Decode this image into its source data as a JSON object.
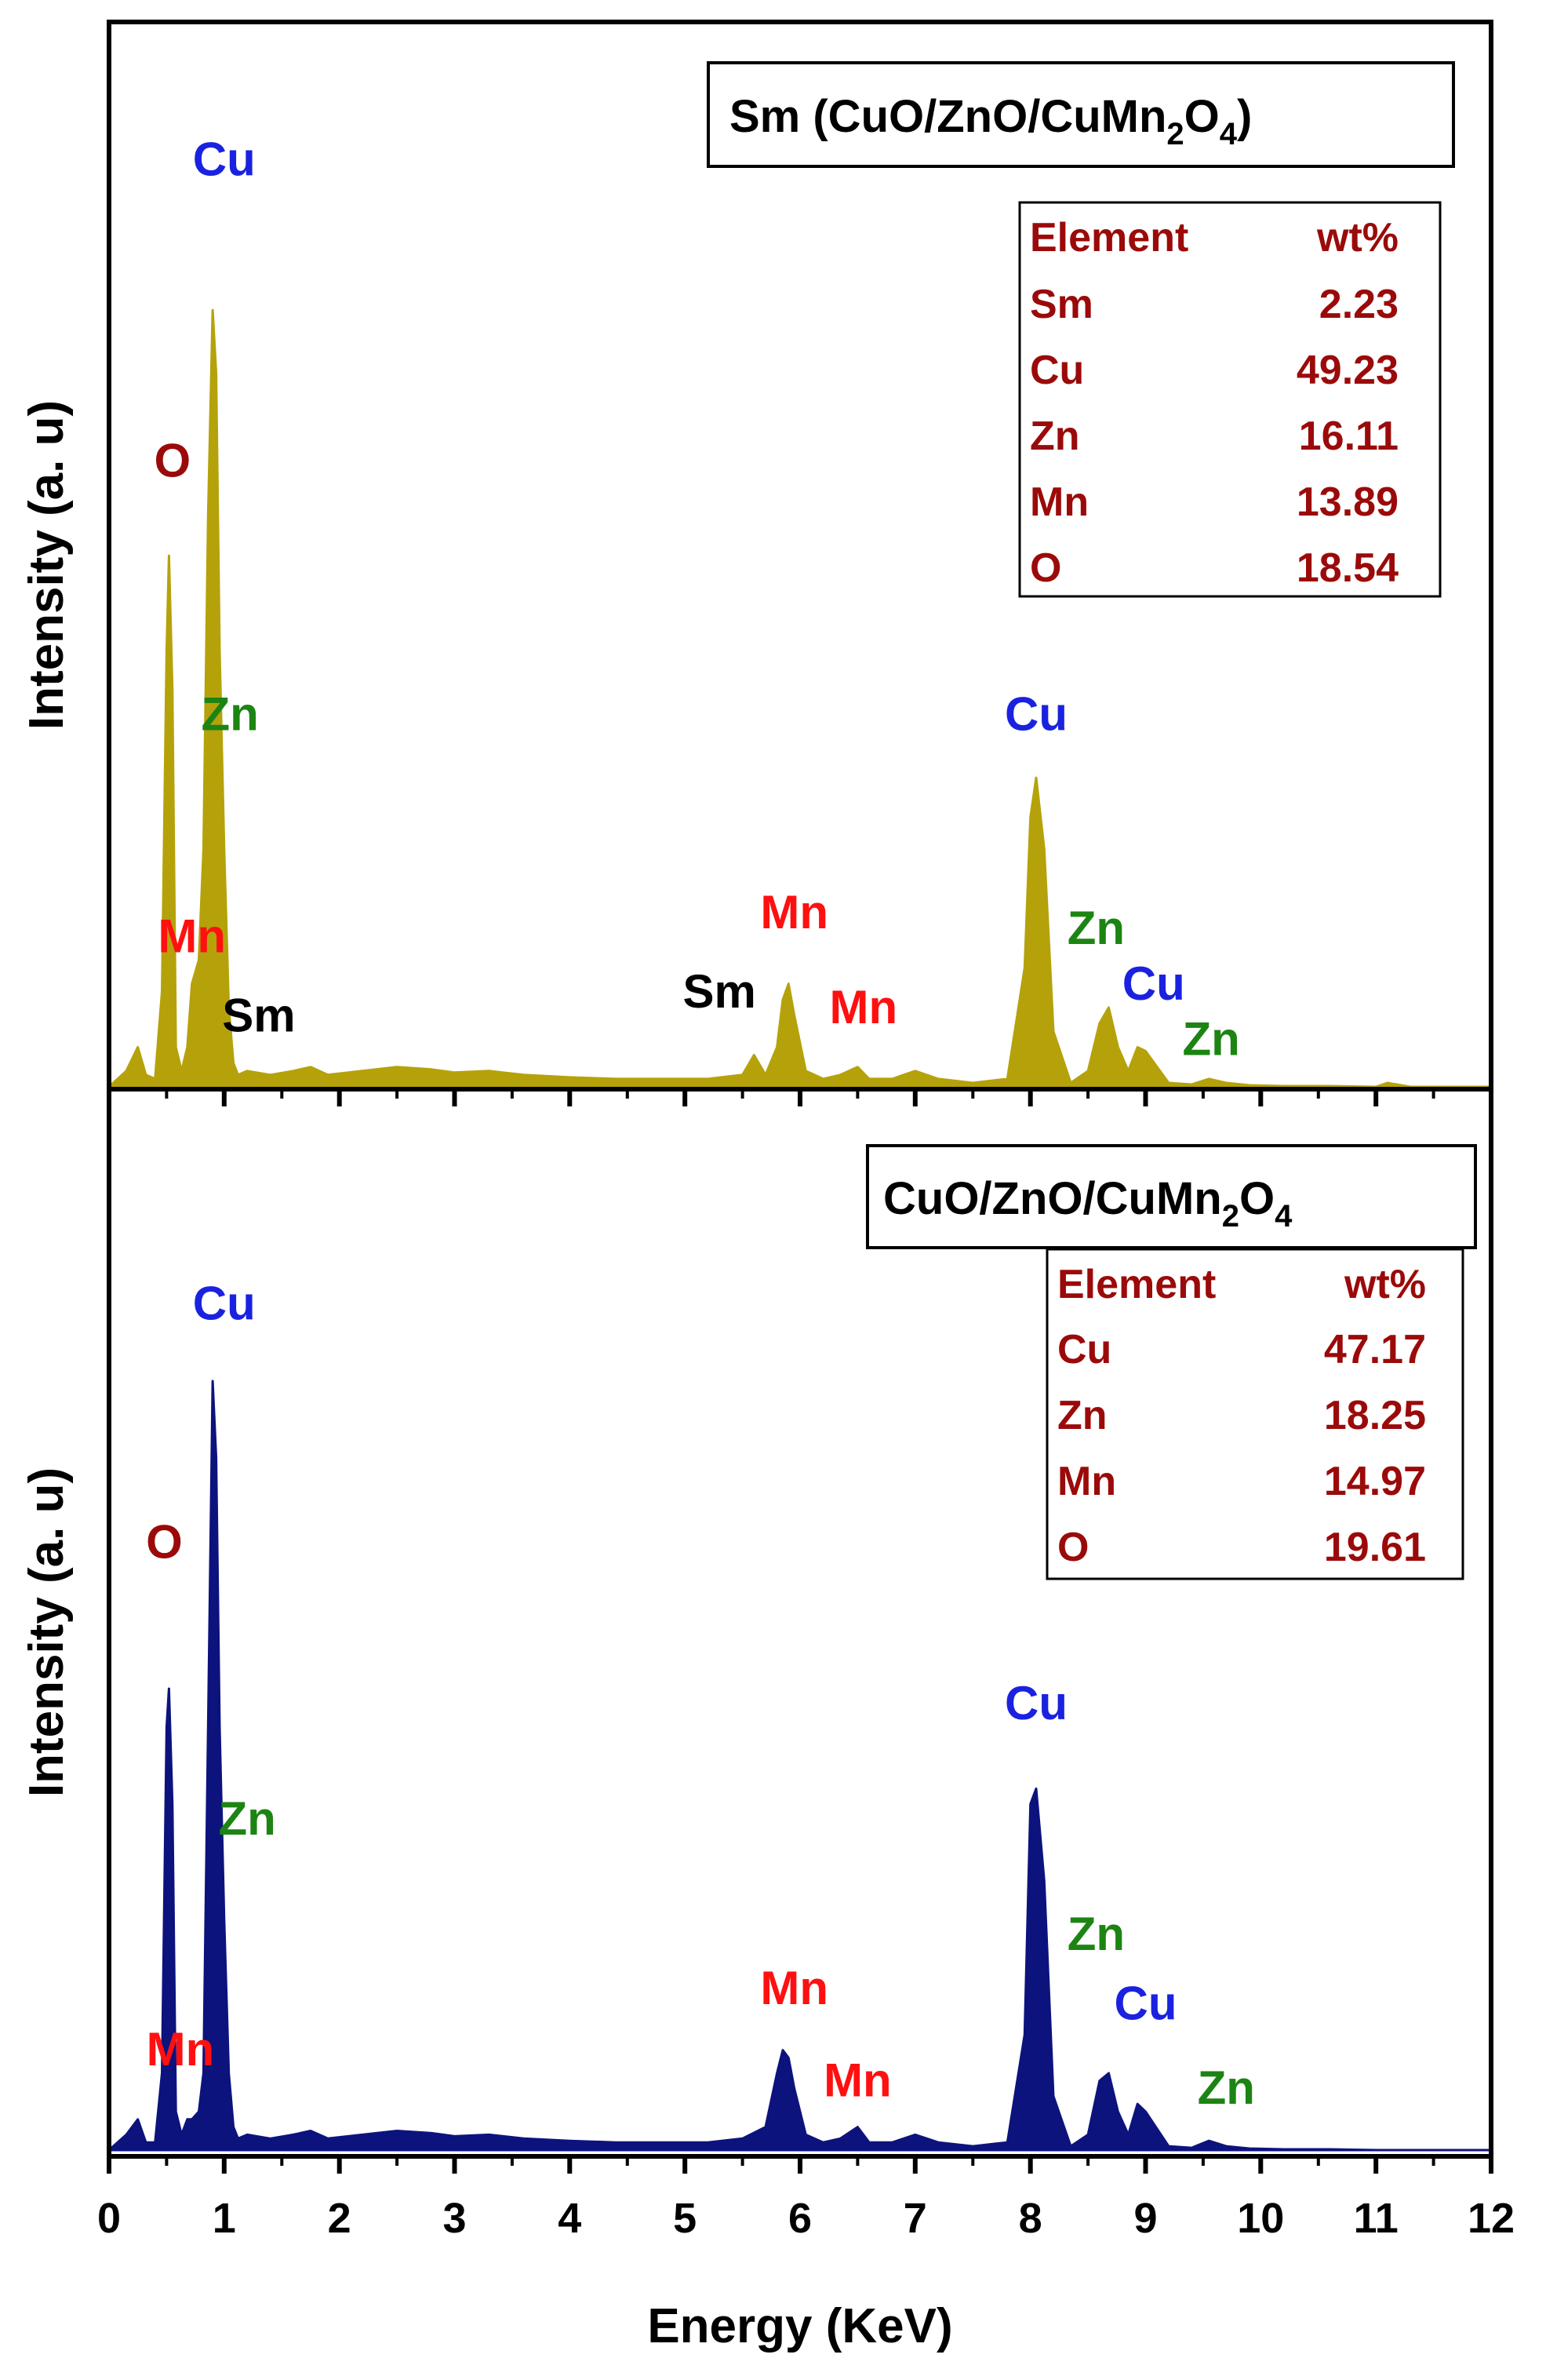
{
  "chart_data": [
    {
      "type": "line",
      "panel": "top",
      "legend": {
        "prefix": "Sm (CuO/ZnO/CuMn",
        "sub1": "2",
        "mid": "O",
        "sub2": "4",
        "suffix": ")"
      },
      "ylabel": "Intensity (a. u)",
      "xlim": [
        0,
        12
      ],
      "ylim": [
        0,
        1
      ],
      "series": [
        {
          "color": "#b5a20a",
          "x": [
            0.0,
            0.15,
            0.25,
            0.32,
            0.4,
            0.46,
            0.5,
            0.52,
            0.55,
            0.58,
            0.63,
            0.68,
            0.72,
            0.78,
            0.82,
            0.86,
            0.9,
            0.93,
            0.96,
            1.0,
            1.04,
            1.08,
            1.12,
            1.2,
            1.4,
            1.6,
            1.75,
            1.9,
            2.2,
            2.5,
            2.8,
            3.0,
            3.3,
            3.6,
            4.0,
            4.4,
            4.8,
            5.2,
            5.5,
            5.6,
            5.7,
            5.8,
            5.85,
            5.9,
            5.95,
            6.05,
            6.2,
            6.35,
            6.5,
            6.6,
            6.8,
            7.0,
            7.2,
            7.5,
            7.8,
            7.95,
            8.0,
            8.05,
            8.12,
            8.2,
            8.35,
            8.5,
            8.6,
            8.68,
            8.76,
            8.85,
            8.93,
            9.0,
            9.2,
            9.4,
            9.55,
            9.7,
            9.9,
            10.2,
            10.6,
            11.0,
            11.1,
            11.3,
            11.6,
            12.0
          ],
          "y": [
            0.0,
            0.02,
            0.05,
            0.015,
            0.01,
            0.12,
            0.55,
            0.67,
            0.5,
            0.05,
            0.02,
            0.05,
            0.13,
            0.16,
            0.3,
            0.72,
            0.98,
            0.9,
            0.55,
            0.3,
            0.1,
            0.03,
            0.015,
            0.02,
            0.015,
            0.02,
            0.025,
            0.015,
            0.02,
            0.025,
            0.022,
            0.018,
            0.02,
            0.015,
            0.012,
            0.01,
            0.01,
            0.01,
            0.015,
            0.04,
            0.015,
            0.05,
            0.11,
            0.13,
            0.09,
            0.02,
            0.01,
            0.015,
            0.025,
            0.01,
            0.01,
            0.02,
            0.01,
            0.005,
            0.01,
            0.15,
            0.34,
            0.39,
            0.3,
            0.07,
            0.005,
            0.02,
            0.08,
            0.1,
            0.05,
            0.02,
            0.05,
            0.045,
            0.005,
            0.003,
            0.01,
            0.005,
            0.002,
            0.001,
            0.001,
            0.0,
            0.005,
            0.0,
            0.0,
            0.0
          ]
        }
      ],
      "peak_labels": [
        {
          "text": "Cu",
          "x": 1.0,
          "y": 1.15,
          "color": "#1a22e0"
        },
        {
          "text": "O",
          "x": 0.55,
          "y": 0.77,
          "color": "#9b0a0a"
        },
        {
          "text": "Zn",
          "x": 1.05,
          "y": 0.45,
          "color": "#1c8413"
        },
        {
          "text": "Mn",
          "x": 0.72,
          "y": 0.17,
          "color": "#ff1010"
        },
        {
          "text": "Sm",
          "x": 1.3,
          "y": 0.07,
          "color": "#000000"
        },
        {
          "text": "Sm",
          "x": 5.3,
          "y": 0.1,
          "color": "#000000"
        },
        {
          "text": "Mn",
          "x": 5.95,
          "y": 0.2,
          "color": "#ff1010"
        },
        {
          "text": "Mn",
          "x": 6.55,
          "y": 0.08,
          "color": "#ff1010"
        },
        {
          "text": "Cu",
          "x": 8.05,
          "y": 0.45,
          "color": "#1a22e0"
        },
        {
          "text": "Zn",
          "x": 8.57,
          "y": 0.18,
          "color": "#1c8413"
        },
        {
          "text": "Cu",
          "x": 9.07,
          "y": 0.11,
          "color": "#1a22e0"
        },
        {
          "text": "Zn",
          "x": 9.57,
          "y": 0.04,
          "color": "#1c8413"
        }
      ],
      "table": {
        "header": [
          "Element",
          "wt%"
        ],
        "rows": [
          [
            "Sm",
            "2.23"
          ],
          [
            "Cu",
            "49.23"
          ],
          [
            "Zn",
            "16.11"
          ],
          [
            "Mn",
            "13.89"
          ],
          [
            "O",
            "18.54"
          ]
        ]
      }
    },
    {
      "type": "line",
      "panel": "bottom",
      "legend": {
        "prefix": "CuO/ZnO/CuMn",
        "sub1": "2",
        "mid": "O",
        "sub2": "4",
        "suffix": ""
      },
      "ylabel": "Intensity (a. u)",
      "xlabel": "Energy (KeV)",
      "xlim": [
        0,
        12
      ],
      "ylim": [
        0,
        1
      ],
      "x_ticks": [
        "0",
        "1",
        "2",
        "3",
        "4",
        "5",
        "6",
        "7",
        "8",
        "9",
        "10",
        "11",
        "12"
      ],
      "series": [
        {
          "color": "#0d137d",
          "x": [
            0.0,
            0.15,
            0.25,
            0.32,
            0.4,
            0.46,
            0.5,
            0.52,
            0.55,
            0.58,
            0.63,
            0.68,
            0.72,
            0.78,
            0.82,
            0.86,
            0.9,
            0.93,
            0.96,
            1.0,
            1.04,
            1.08,
            1.12,
            1.2,
            1.4,
            1.6,
            1.75,
            1.9,
            2.2,
            2.5,
            2.8,
            3.0,
            3.3,
            3.6,
            4.0,
            4.4,
            4.8,
            5.2,
            5.5,
            5.7,
            5.8,
            5.85,
            5.9,
            5.95,
            6.05,
            6.2,
            6.35,
            6.5,
            6.6,
            6.8,
            7.0,
            7.2,
            7.5,
            7.8,
            7.95,
            8.0,
            8.05,
            8.12,
            8.2,
            8.35,
            8.5,
            8.6,
            8.68,
            8.76,
            8.85,
            8.93,
            9.0,
            9.2,
            9.4,
            9.55,
            9.7,
            9.9,
            10.2,
            10.6,
            11.0,
            11.3,
            11.6,
            12.0
          ],
          "y": [
            0.0,
            0.02,
            0.04,
            0.01,
            0.01,
            0.1,
            0.55,
            0.6,
            0.45,
            0.05,
            0.02,
            0.04,
            0.04,
            0.05,
            0.1,
            0.55,
            1.0,
            0.9,
            0.55,
            0.3,
            0.1,
            0.03,
            0.015,
            0.02,
            0.015,
            0.02,
            0.025,
            0.015,
            0.02,
            0.025,
            0.022,
            0.018,
            0.02,
            0.015,
            0.012,
            0.01,
            0.01,
            0.01,
            0.015,
            0.03,
            0.1,
            0.13,
            0.12,
            0.08,
            0.02,
            0.01,
            0.015,
            0.03,
            0.01,
            0.01,
            0.02,
            0.01,
            0.005,
            0.01,
            0.15,
            0.45,
            0.47,
            0.35,
            0.07,
            0.005,
            0.02,
            0.09,
            0.1,
            0.05,
            0.02,
            0.06,
            0.05,
            0.005,
            0.003,
            0.012,
            0.005,
            0.002,
            0.001,
            0.001,
            0.0,
            0.0,
            0.0,
            0.0
          ]
        }
      ],
      "peak_labels": [
        {
          "text": "Cu",
          "x": 1.0,
          "y": 1.08,
          "color": "#1a22e0"
        },
        {
          "text": "O",
          "x": 0.48,
          "y": 0.77,
          "color": "#9b0a0a"
        },
        {
          "text": "Zn",
          "x": 1.2,
          "y": 0.41,
          "color": "#1c8413"
        },
        {
          "text": "Mn",
          "x": 0.62,
          "y": 0.11,
          "color": "#ff1010"
        },
        {
          "text": "Mn",
          "x": 5.95,
          "y": 0.19,
          "color": "#ff1010"
        },
        {
          "text": "Mn",
          "x": 6.5,
          "y": 0.07,
          "color": "#ff1010"
        },
        {
          "text": "Cu",
          "x": 8.05,
          "y": 0.56,
          "color": "#1a22e0"
        },
        {
          "text": "Zn",
          "x": 8.57,
          "y": 0.26,
          "color": "#1c8413"
        },
        {
          "text": "Cu",
          "x": 9.0,
          "y": 0.17,
          "color": "#1a22e0"
        },
        {
          "text": "Zn",
          "x": 9.7,
          "y": 0.06,
          "color": "#1c8413"
        }
      ],
      "table": {
        "header": [
          "Element",
          "wt%"
        ],
        "rows": [
          [
            "Cu",
            "47.17"
          ],
          [
            "Zn",
            "18.25"
          ],
          [
            "Mn",
            "14.97"
          ],
          [
            "O",
            "19.61"
          ]
        ]
      }
    }
  ]
}
